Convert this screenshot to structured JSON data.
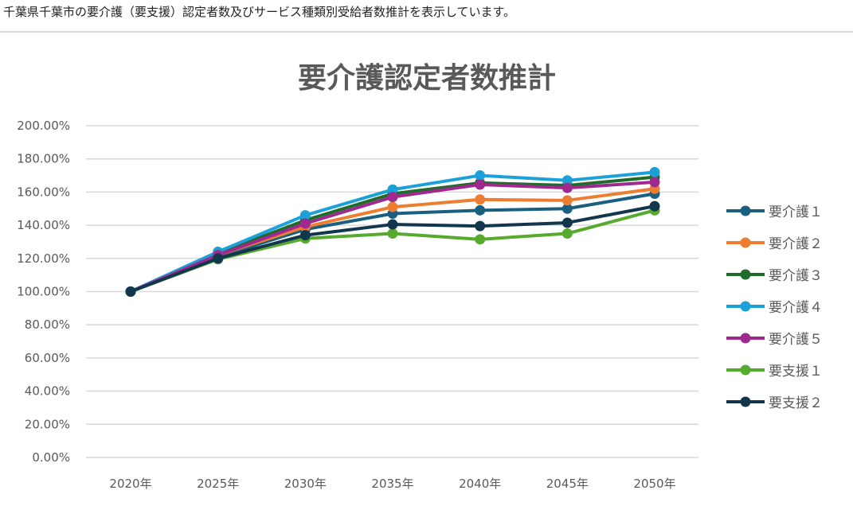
{
  "caption": "千葉県千葉市の要介護（要支援）認定者数及びサービス種類別受給者数推計を表示しています。",
  "chart_data": {
    "type": "line",
    "title": "要介護認定者数推計",
    "xlabel": "",
    "ylabel": "",
    "categories": [
      "2020年",
      "2025年",
      "2030年",
      "2035年",
      "2040年",
      "2045年",
      "2050年"
    ],
    "ylim": [
      0,
      200
    ],
    "yticks": [
      "0.00%",
      "20.00%",
      "40.00%",
      "60.00%",
      "80.00%",
      "100.00%",
      "120.00%",
      "140.00%",
      "160.00%",
      "180.00%",
      "200.00%"
    ],
    "grid": true,
    "legend": "right",
    "series": [
      {
        "name": "要介護１",
        "color": "#1a5f80",
        "values": [
          100,
          121,
          137.5,
          147,
          149,
          150,
          159
        ]
      },
      {
        "name": "要介護２",
        "color": "#ed7d31",
        "values": [
          100,
          122,
          139,
          151,
          155.5,
          155,
          162
        ]
      },
      {
        "name": "要介護３",
        "color": "#1e6b2a",
        "values": [
          100,
          123,
          143,
          159,
          165.5,
          164,
          169
        ]
      },
      {
        "name": "要介護４",
        "color": "#1ba1d8",
        "values": [
          100,
          124,
          146,
          161.5,
          170,
          167,
          172
        ]
      },
      {
        "name": "要介護５",
        "color": "#a0298f",
        "values": [
          100,
          122,
          141,
          157,
          164.5,
          162.5,
          166
        ]
      },
      {
        "name": "要支援１",
        "color": "#56ab2f",
        "values": [
          100,
          119.5,
          132,
          135,
          131.5,
          135,
          149
        ]
      },
      {
        "name": "要支援２",
        "color": "#12374d",
        "values": [
          100,
          120,
          134,
          140.5,
          139.5,
          141.5,
          151.5
        ]
      }
    ]
  }
}
